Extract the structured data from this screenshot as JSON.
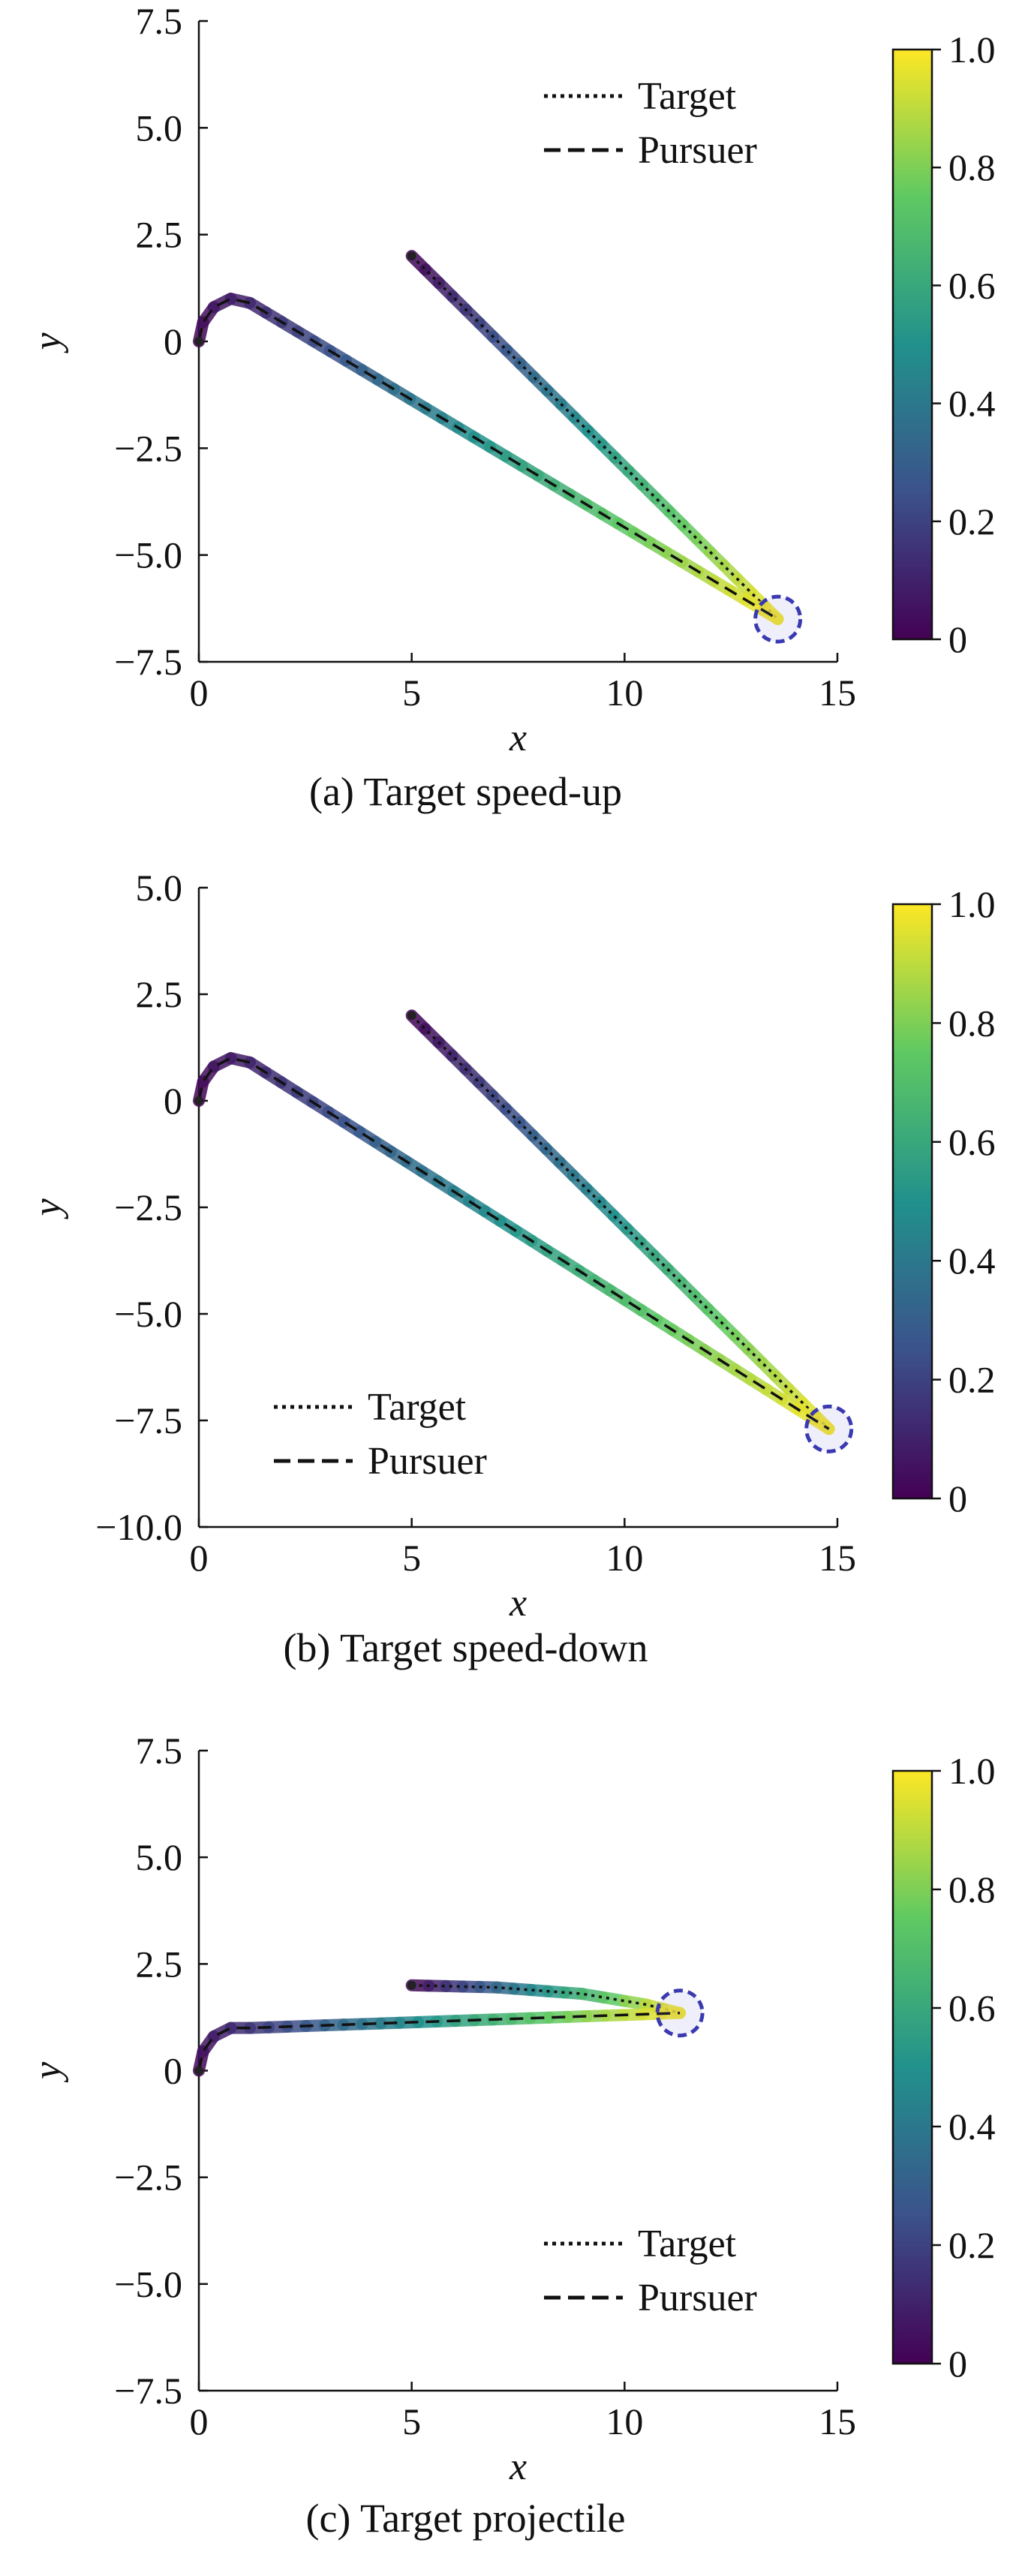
{
  "chart_data": [
    {
      "type": "line",
      "caption": "(a) Target speed-up",
      "xlabel": "x",
      "ylabel": "y",
      "xlim": [
        0,
        15
      ],
      "ylim": [
        -7.5,
        7.5
      ],
      "xticks": [
        "0",
        "5",
        "10",
        "15"
      ],
      "yticks": [
        "7.5",
        "5.0",
        "2.5",
        "0",
        "−2.5",
        "−5.0",
        "−7.5"
      ],
      "legend_position": "top-right",
      "colorbar": {
        "min": 0,
        "max": 1,
        "ticks": [
          "1.0",
          "0.8",
          "0.6",
          "0.4",
          "0.2",
          "0"
        ]
      },
      "series": [
        {
          "name": "Target",
          "style": "dotted",
          "points": [
            [
              5,
              2.0
            ],
            [
              13.6,
              -6.5
            ]
          ]
        },
        {
          "name": "Pursuer",
          "style": "dashed",
          "points": [
            [
              0,
              0
            ],
            [
              0.1,
              0.45
            ],
            [
              0.35,
              0.8
            ],
            [
              0.75,
              1.0
            ],
            [
              1.2,
              0.9
            ],
            [
              13.6,
              -6.5
            ]
          ]
        }
      ],
      "capture_point": [
        13.6,
        -6.5
      ]
    },
    {
      "type": "line",
      "caption": "(b) Target speed-down",
      "xlabel": "x",
      "ylabel": "y",
      "xlim": [
        0,
        15
      ],
      "ylim": [
        -10.0,
        5.0
      ],
      "xticks": [
        "0",
        "5",
        "10",
        "15"
      ],
      "yticks": [
        "5.0",
        "2.5",
        "0",
        "−2.5",
        "−5.0",
        "−7.5",
        "−10.0"
      ],
      "legend_position": "bottom-left",
      "colorbar": {
        "min": 0,
        "max": 1,
        "ticks": [
          "1.0",
          "0.8",
          "0.6",
          "0.4",
          "0.2",
          "0"
        ]
      },
      "series": [
        {
          "name": "Target",
          "style": "dotted",
          "points": [
            [
              5,
              2.0
            ],
            [
              14.8,
              -7.7
            ]
          ]
        },
        {
          "name": "Pursuer",
          "style": "dashed",
          "points": [
            [
              0,
              0
            ],
            [
              0.1,
              0.45
            ],
            [
              0.35,
              0.8
            ],
            [
              0.75,
              1.0
            ],
            [
              1.2,
              0.9
            ],
            [
              14.8,
              -7.7
            ]
          ]
        }
      ],
      "capture_point": [
        14.8,
        -7.7
      ]
    },
    {
      "type": "line",
      "caption": "(c) Target projectile",
      "xlabel": "x",
      "ylabel": "y",
      "xlim": [
        0,
        15
      ],
      "ylim": [
        -7.5,
        7.5
      ],
      "xticks": [
        "0",
        "5",
        "10",
        "15"
      ],
      "yticks": [
        "7.5",
        "5.0",
        "2.5",
        "0",
        "−2.5",
        "−5.0",
        "−7.5"
      ],
      "legend_position": "bottom-right",
      "colorbar": {
        "min": 0,
        "max": 1,
        "ticks": [
          "1.0",
          "0.8",
          "0.6",
          "0.4",
          "0.2",
          "0"
        ]
      },
      "series": [
        {
          "name": "Target",
          "style": "dotted",
          "points": [
            [
              5,
              2.0
            ],
            [
              7,
              1.95
            ],
            [
              9,
              1.8
            ],
            [
              10.5,
              1.55
            ],
            [
              11.3,
              1.35
            ]
          ]
        },
        {
          "name": "Pursuer",
          "style": "dashed",
          "points": [
            [
              0,
              0
            ],
            [
              0.1,
              0.45
            ],
            [
              0.35,
              0.8
            ],
            [
              0.75,
              1.0
            ],
            [
              1.2,
              1.0
            ],
            [
              11.3,
              1.35
            ]
          ]
        }
      ],
      "capture_point": [
        11.3,
        1.35
      ]
    }
  ],
  "colors": {
    "viridis": [
      "#440154",
      "#3b528b",
      "#21918c",
      "#5ec962",
      "#fde725"
    ],
    "capture_circle": "#3a3ab0",
    "axis": "#111111"
  }
}
